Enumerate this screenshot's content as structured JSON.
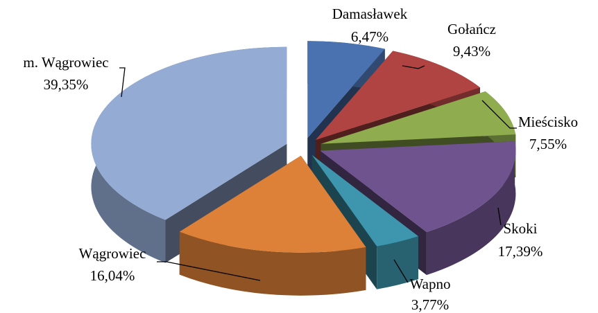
{
  "chart_data": {
    "type": "pie",
    "categories": [
      "Damasławek",
      "Gołańcz",
      "Mieścisko",
      "Skoki",
      "Wapno",
      "Wągrowiec",
      "m.  Wągrowiec"
    ],
    "values": [
      6.47,
      9.43,
      7.55,
      17.39,
      3.77,
      16.04,
      39.35
    ],
    "value_labels": [
      "6,47%",
      "9,43%",
      "7,55%",
      "17,39%",
      "3,77%",
      "16,04%",
      "39,35%"
    ],
    "colors": [
      "#4a72b0",
      "#b04442",
      "#8fac4e",
      "#6f538f",
      "#3d96ae",
      "#dd8038",
      "#94abd4"
    ]
  }
}
